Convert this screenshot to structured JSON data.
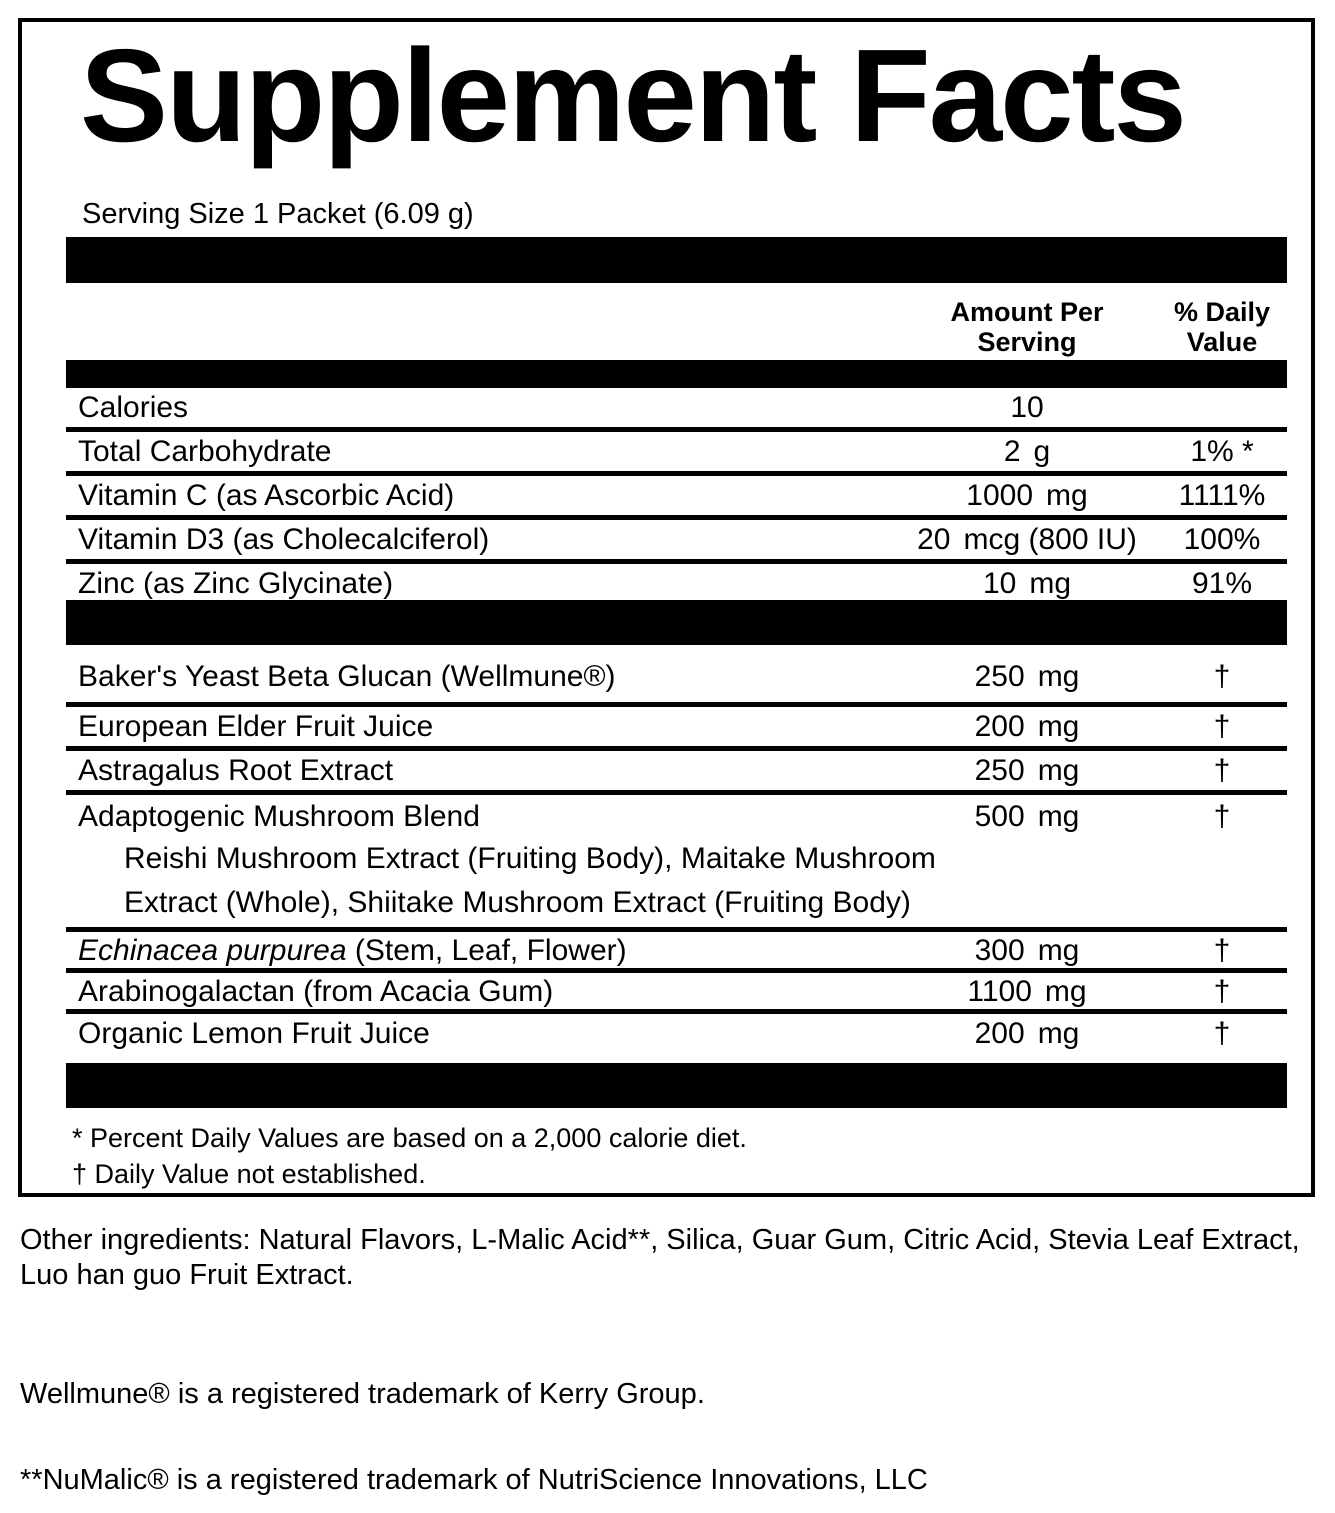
{
  "colors": {
    "text": "#000000",
    "background": "#ffffff",
    "bar": "#000000"
  },
  "panel": {
    "title": "Supplement Facts",
    "serving_size": "Serving Size 1 Packet (6.09 g)",
    "columns": {
      "amount_line1": "Amount Per",
      "amount_line2": "Serving",
      "dv_line1": "% Daily",
      "dv_line2": "Value"
    }
  },
  "nutrients": [
    {
      "name": "Calories",
      "amount_num": "10",
      "amount_unit": "",
      "dv": ""
    },
    {
      "name": "Total Carbohydrate",
      "amount_num": "2",
      "amount_unit": "g",
      "dv": "1% *"
    },
    {
      "name": "Vitamin C (as Ascorbic Acid)",
      "amount_num": "1000",
      "amount_unit": "mg",
      "dv": "1111%"
    },
    {
      "name": "Vitamin D3 (as Cholecalciferol)",
      "amount_num": "20",
      "amount_unit": "mcg (800 IU)",
      "dv": "100%"
    },
    {
      "name": "Zinc (as Zinc Glycinate)",
      "amount_num": "10",
      "amount_unit": "mg",
      "dv": "91%"
    }
  ],
  "ingredients": [
    {
      "name": "Baker's Yeast Beta Glucan (Wellmune®)",
      "amount_num": "250",
      "amount_unit": "mg",
      "dv": "†"
    },
    {
      "name": "European Elder Fruit Juice",
      "amount_num": "200",
      "amount_unit": "mg",
      "dv": "†"
    },
    {
      "name": "Astragalus Root Extract",
      "amount_num": "250",
      "amount_unit": "mg",
      "dv": "†"
    },
    {
      "name": "Adaptogenic Mushroom Blend",
      "amount_num": "500",
      "amount_unit": "mg",
      "dv": "†",
      "sub_lines": [
        "Reishi Mushroom Extract (Fruiting Body), Maitake Mushroom",
        "Extract (Whole), Shiitake Mushroom Extract (Fruiting Body)"
      ]
    },
    {
      "name_italic": "Echinacea purpurea",
      "name_rest": " (Stem, Leaf, Flower)",
      "amount_num": "300",
      "amount_unit": "mg",
      "dv": "†"
    },
    {
      "name": "Arabinogalactan (from Acacia Gum)",
      "amount_num": "1100",
      "amount_unit": "mg",
      "dv": "†"
    },
    {
      "name": "Organic Lemon Fruit Juice",
      "amount_num": "200",
      "amount_unit": "mg",
      "dv": "†"
    }
  ],
  "footnotes": {
    "percent_note": "* Percent Daily Values are based on a 2,000 calorie diet.",
    "dagger_note": "† Daily Value not established."
  },
  "other_ingredients": {
    "line1": "Other ingredients: Natural Flavors, L-Malic Acid**, Silica, Guar Gum, Citric Acid, Stevia Leaf Extract,",
    "line2": "Luo han guo Fruit Extract."
  },
  "trademarks": {
    "wellmune": "Wellmune® is a registered trademark of Kerry Group.",
    "numalic": "**NuMalic® is a registered trademark of NutriScience Innovations, LLC"
  }
}
